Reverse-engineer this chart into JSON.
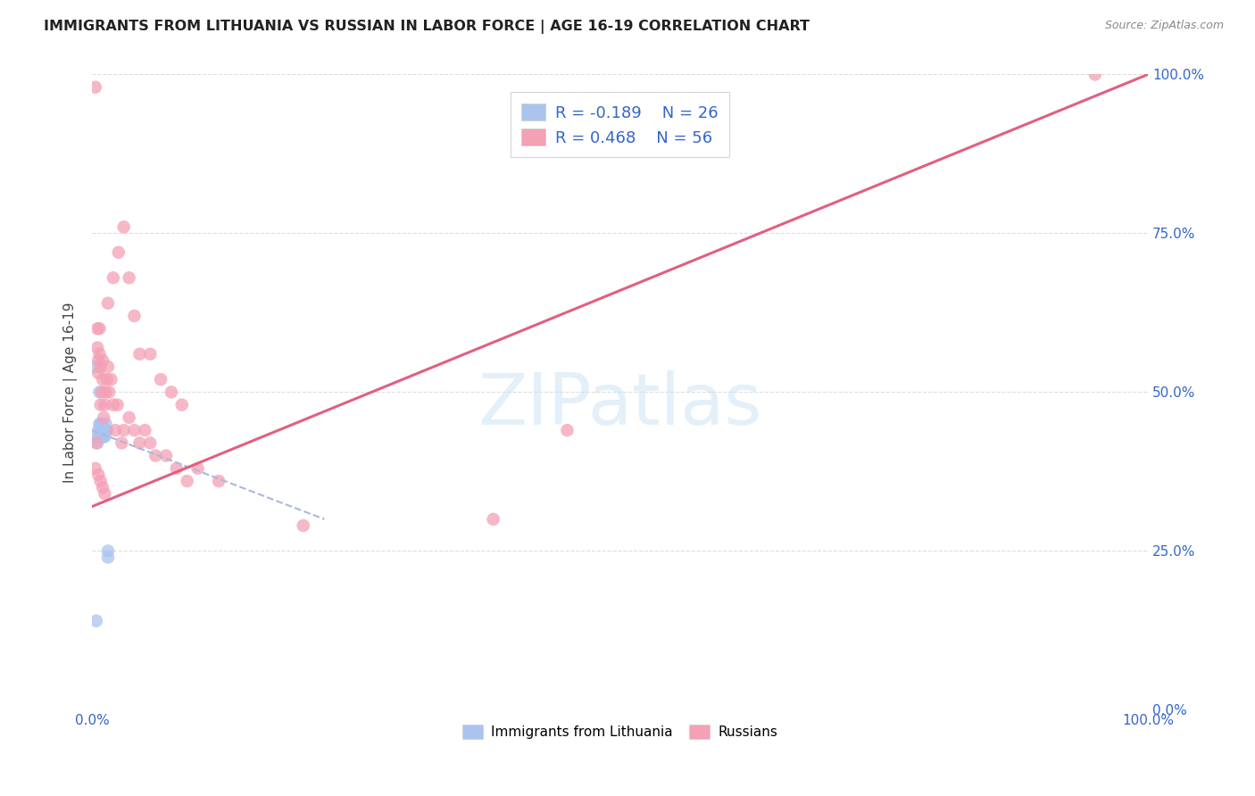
{
  "title": "IMMIGRANTS FROM LITHUANIA VS RUSSIAN IN LABOR FORCE | AGE 16-19 CORRELATION CHART",
  "source": "Source: ZipAtlas.com",
  "ylabel": "In Labor Force | Age 16-19",
  "xlim": [
    0,
    1.0
  ],
  "ylim": [
    0,
    1.0
  ],
  "legend_r_lithuania": "-0.189",
  "legend_n_lithuania": "26",
  "legend_r_russian": "0.468",
  "legend_n_russian": "56",
  "legend_label_lithuania": "Immigrants from Lithuania",
  "legend_label_russian": "Russians",
  "color_lithuania": "#aac4ee",
  "color_russian": "#f4a0b5",
  "trendline_lithuania_color": "#aab8dd",
  "trendline_russian_color": "#e06080",
  "trendline_lit_x0": 0.0,
  "trendline_lit_y0": 0.44,
  "trendline_lit_x1": 0.22,
  "trendline_lit_y1": 0.3,
  "trendline_rus_x0": 0.0,
  "trendline_rus_y0": 0.32,
  "trendline_rus_x1": 1.0,
  "trendline_rus_y1": 1.0,
  "lit_x": [
    0.005,
    0.006,
    0.007,
    0.007,
    0.008,
    0.008,
    0.008,
    0.009,
    0.009,
    0.01,
    0.01,
    0.01,
    0.011,
    0.011,
    0.011,
    0.012,
    0.012,
    0.013,
    0.013,
    0.014,
    0.003,
    0.007,
    0.015,
    0.015,
    0.004,
    0.005
  ],
  "lit_y": [
    0.43,
    0.44,
    0.45,
    0.43,
    0.44,
    0.45,
    0.43,
    0.44,
    0.43,
    0.44,
    0.45,
    0.43,
    0.44,
    0.43,
    0.44,
    0.44,
    0.43,
    0.44,
    0.45,
    0.44,
    0.54,
    0.5,
    0.24,
    0.25,
    0.14,
    0.42
  ],
  "rus_x": [
    0.004,
    0.005,
    0.005,
    0.006,
    0.006,
    0.007,
    0.007,
    0.008,
    0.008,
    0.009,
    0.01,
    0.01,
    0.011,
    0.012,
    0.013,
    0.014,
    0.015,
    0.016,
    0.018,
    0.02,
    0.022,
    0.024,
    0.028,
    0.03,
    0.035,
    0.04,
    0.045,
    0.05,
    0.055,
    0.06,
    0.07,
    0.08,
    0.09,
    0.1,
    0.12,
    0.015,
    0.02,
    0.025,
    0.03,
    0.035,
    0.04,
    0.045,
    0.055,
    0.065,
    0.075,
    0.085,
    0.006,
    0.008,
    0.01,
    0.012,
    0.003,
    0.2,
    0.38,
    0.45,
    0.95,
    0.003
  ],
  "rus_y": [
    0.42,
    0.6,
    0.57,
    0.55,
    0.53,
    0.6,
    0.56,
    0.54,
    0.48,
    0.5,
    0.55,
    0.52,
    0.46,
    0.48,
    0.5,
    0.52,
    0.54,
    0.5,
    0.52,
    0.48,
    0.44,
    0.48,
    0.42,
    0.44,
    0.46,
    0.44,
    0.42,
    0.44,
    0.42,
    0.4,
    0.4,
    0.38,
    0.36,
    0.38,
    0.36,
    0.64,
    0.68,
    0.72,
    0.76,
    0.68,
    0.62,
    0.56,
    0.56,
    0.52,
    0.5,
    0.48,
    0.37,
    0.36,
    0.35,
    0.34,
    0.98,
    0.29,
    0.3,
    0.44,
    1.0,
    0.38
  ]
}
